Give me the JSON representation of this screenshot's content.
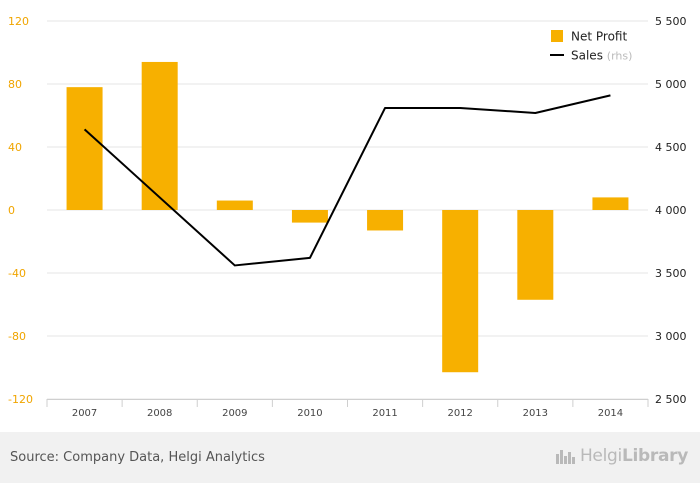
{
  "chart_data": {
    "type": "bar+line",
    "categories": [
      "2007",
      "2008",
      "2009",
      "2010",
      "2011",
      "2012",
      "2013",
      "2014"
    ],
    "series": [
      {
        "name": "Net Profit",
        "type": "bar",
        "axis": "left",
        "color": "#f7b000",
        "values": [
          78,
          94,
          6,
          -8,
          -13,
          -103,
          -57,
          8
        ]
      },
      {
        "name": "Sales",
        "type": "line",
        "axis": "right",
        "color": "#000000",
        "values": [
          4640,
          null,
          3560,
          3620,
          4810,
          4810,
          4770,
          4910
        ]
      }
    ],
    "y_left": {
      "min": -120,
      "max": 120,
      "ticks": [
        "120",
        "80",
        "40",
        "0",
        "-40",
        "-80",
        "-120"
      ],
      "tick_values": [
        120,
        80,
        40,
        0,
        -40,
        -80,
        -120
      ],
      "color": "#f0a500"
    },
    "y_right": {
      "min": 2500,
      "max": 5500,
      "ticks": [
        "5 500",
        "5 000",
        "4 500",
        "4 000",
        "3 500",
        "3 000",
        "2 500"
      ],
      "tick_values": [
        5500,
        5000,
        4500,
        4000,
        3500,
        3000,
        2500
      ],
      "color": "#222222"
    },
    "legend": {
      "position": "top-right",
      "items": [
        {
          "label": "Net Profit",
          "suffix": ""
        },
        {
          "label": "Sales",
          "suffix": "(rhs)"
        }
      ]
    },
    "grid": true
  },
  "footer": {
    "source": "Source: Company Data, Helgi Analytics",
    "brand_name": "Helgi",
    "brand_suffix": "Library",
    "icon": "city-skyline-icon"
  }
}
